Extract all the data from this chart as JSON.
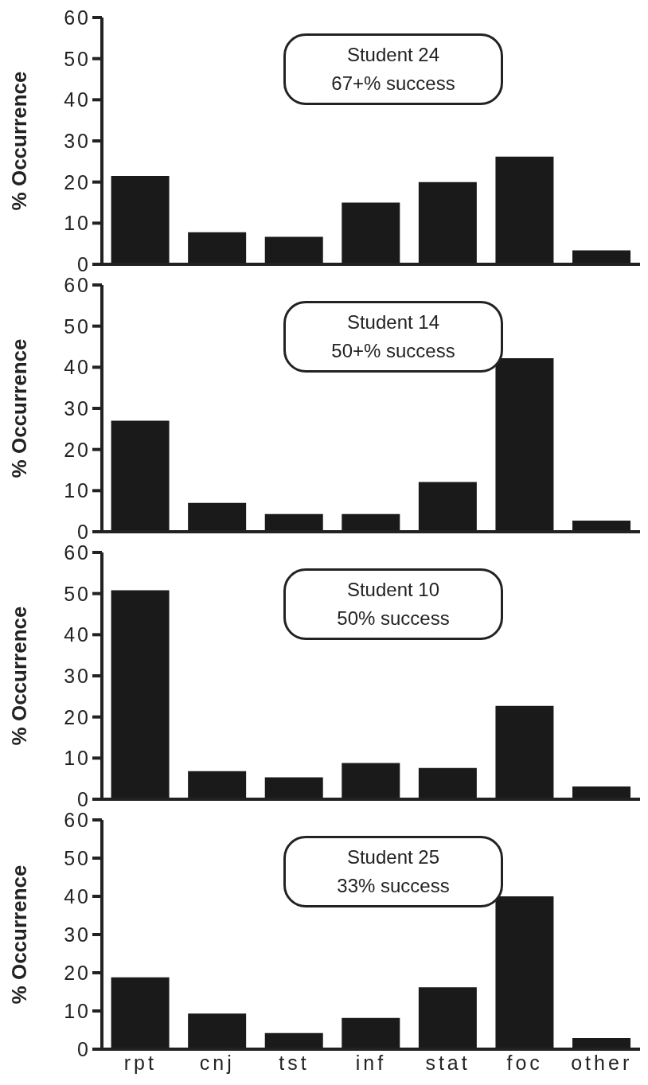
{
  "chart_data": [
    {
      "type": "bar",
      "categories": [
        null,
        null,
        null,
        null,
        null,
        null,
        null
      ],
      "values": [
        21.5,
        7.8,
        6.7,
        15,
        20,
        26.2,
        3.4
      ],
      "color": "#1a1a1a",
      "ylim": [
        0,
        60
      ],
      "yticks": [
        0,
        10,
        20,
        30,
        40,
        50,
        60
      ],
      "ylabel": "% Occurrence",
      "annotations": [
        "Student  24",
        "67+% success"
      ],
      "tick_labels": "y"
    },
    {
      "type": "bar",
      "categories": [
        null,
        null,
        null,
        null,
        null,
        null,
        null
      ],
      "values": [
        27,
        7,
        4.3,
        4.3,
        12.1,
        42.2,
        2.7
      ],
      "color": "#1a1a1a",
      "ylim": [
        0,
        60
      ],
      "yticks": [
        0,
        10,
        20,
        30,
        40,
        50,
        60
      ],
      "ylabel": "% Occurrence",
      "annotations": [
        "Student  14",
        "50+% success"
      ],
      "tick_labels": "y"
    },
    {
      "type": "bar",
      "categories": [
        null,
        null,
        null,
        null,
        null,
        null,
        null
      ],
      "values": [
        50.8,
        6.8,
        5.3,
        8.8,
        7.6,
        22.7,
        3.1
      ],
      "color": "#1a1a1a",
      "ylim": [
        0,
        60
      ],
      "yticks": [
        0,
        10,
        20,
        30,
        40,
        50,
        60
      ],
      "ylabel": "% Occurrence",
      "annotations": [
        "Student  10",
        "50% success"
      ],
      "tick_labels": "y"
    },
    {
      "type": "bar",
      "categories": [
        "rpt",
        "cnj",
        "tst",
        "inf",
        "stat",
        "foc",
        "other"
      ],
      "values": [
        18.8,
        9.3,
        4.2,
        8.2,
        16.2,
        40,
        2.9
      ],
      "color": "#1a1a1a",
      "ylim": [
        0,
        60
      ],
      "yticks": [
        0,
        10,
        20,
        30,
        40,
        50,
        60
      ],
      "ylabel": "% Occurrence",
      "annotations": [
        "Student  25",
        "33% success"
      ]
    }
  ]
}
